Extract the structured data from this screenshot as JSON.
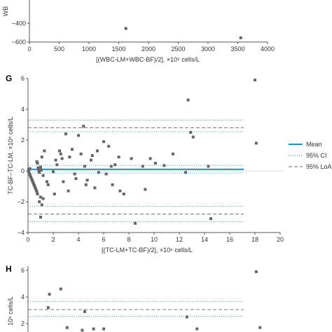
{
  "chart_data": [
    {
      "panel_label": "",
      "type": "scatter",
      "xlabel": "[(WBC-LM+WBC-BF)/2], ×10⁶ cells/L",
      "ylabel": "WB",
      "xlim": [
        0,
        4000
      ],
      "ylim": [
        -600,
        0
      ],
      "x_ticks": [
        "0",
        "500",
        "1000",
        "1500",
        "2000",
        "2500",
        "3000",
        "3500",
        "4000"
      ],
      "y_ticks": [
        "−400",
        "−600"
      ],
      "ci_line": -10,
      "points": [
        {
          "x": 1620,
          "y": -455
        },
        {
          "x": 3550,
          "y": -555
        }
      ]
    },
    {
      "panel_label": "G",
      "type": "scatter",
      "xlabel": "[(TC-LM+TC-BF)/2], ×10⁶ cells/L",
      "ylabel": "TC-BF–TC-LM, ×10⁶ cells/L",
      "xlim": [
        0,
        20
      ],
      "ylim": [
        -4,
        6
      ],
      "x_ticks": [
        "0",
        "2",
        "4",
        "6",
        "8",
        "10",
        "12",
        "14",
        "16",
        "18",
        "20"
      ],
      "y_ticks": [
        "6",
        "4",
        "2",
        "0",
        "−2",
        "−4"
      ],
      "lines": {
        "mean": 0.1,
        "mean_ci": [
          -0.15,
          0.35
        ],
        "upper_loa": 2.8,
        "upper_loa_ci": [
          2.55,
          3.3
        ],
        "lower_loa": -2.8,
        "lower_loa_ci": [
          -2.3,
          -3.3
        ]
      },
      "points": [
        {
          "x": 0.05,
          "y": -0.05
        },
        {
          "x": 0.1,
          "y": -0.15
        },
        {
          "x": 0.15,
          "y": -0.25
        },
        {
          "x": 0.2,
          "y": -0.35
        },
        {
          "x": 0.25,
          "y": -0.45
        },
        {
          "x": 0.3,
          "y": -0.55
        },
        {
          "x": 0.35,
          "y": -0.65
        },
        {
          "x": 0.4,
          "y": -0.75
        },
        {
          "x": 0.45,
          "y": -0.85
        },
        {
          "x": 0.5,
          "y": -0.95
        },
        {
          "x": 0.55,
          "y": -1.05
        },
        {
          "x": 0.6,
          "y": -1.15
        },
        {
          "x": 0.65,
          "y": -1.25
        },
        {
          "x": 0.7,
          "y": -1.35
        },
        {
          "x": 0.75,
          "y": -1.5
        },
        {
          "x": 0.05,
          "y": 0.1
        },
        {
          "x": 0.15,
          "y": 0.15
        },
        {
          "x": 0.7,
          "y": 0.6
        },
        {
          "x": 0.75,
          "y": 0.5
        },
        {
          "x": 0.8,
          "y": 0.2
        },
        {
          "x": 0.85,
          "y": 0.0
        },
        {
          "x": 0.9,
          "y": -0.1
        },
        {
          "x": 0.95,
          "y": 0.1
        },
        {
          "x": 1.0,
          "y": 0.25
        },
        {
          "x": 1.05,
          "y": 0.05
        },
        {
          "x": 1.0,
          "y": -1.7
        },
        {
          "x": 1.2,
          "y": -1.8
        },
        {
          "x": 0.9,
          "y": -2.0
        },
        {
          "x": 1.1,
          "y": -2.2
        },
        {
          "x": 1.0,
          "y": -3.0
        },
        {
          "x": 1.1,
          "y": 0.9
        },
        {
          "x": 1.3,
          "y": 1.3
        },
        {
          "x": 1.2,
          "y": -0.3
        },
        {
          "x": 1.5,
          "y": -0.7
        },
        {
          "x": 1.6,
          "y": -0.9
        },
        {
          "x": 2.0,
          "y": -0.05
        },
        {
          "x": 2.2,
          "y": 0.7
        },
        {
          "x": 2.3,
          "y": 0.4
        },
        {
          "x": 2.1,
          "y": -1.5
        },
        {
          "x": 2.5,
          "y": 1.3
        },
        {
          "x": 2.6,
          "y": 1.1
        },
        {
          "x": 2.7,
          "y": 0.8
        },
        {
          "x": 2.8,
          "y": -0.7
        },
        {
          "x": 3.0,
          "y": 2.4
        },
        {
          "x": 3.3,
          "y": 0.9
        },
        {
          "x": 3.2,
          "y": -1.3
        },
        {
          "x": 3.5,
          "y": 1.4
        },
        {
          "x": 3.7,
          "y": -0.2
        },
        {
          "x": 3.8,
          "y": -0.5
        },
        {
          "x": 4.0,
          "y": 2.3
        },
        {
          "x": 4.2,
          "y": 1.1
        },
        {
          "x": 4.4,
          "y": 2.9
        },
        {
          "x": 4.5,
          "y": 0.3
        },
        {
          "x": 4.6,
          "y": -0.9
        },
        {
          "x": 4.7,
          "y": -0.6
        },
        {
          "x": 5.0,
          "y": 0.7
        },
        {
          "x": 5.1,
          "y": 1.0
        },
        {
          "x": 5.3,
          "y": -1.1
        },
        {
          "x": 5.5,
          "y": 1.3
        },
        {
          "x": 5.6,
          "y": -0.1
        },
        {
          "x": 6.0,
          "y": 1.9
        },
        {
          "x": 6.2,
          "y": -0.2
        },
        {
          "x": 6.4,
          "y": 1.6
        },
        {
          "x": 6.6,
          "y": 0.3
        },
        {
          "x": 6.7,
          "y": -0.9
        },
        {
          "x": 6.9,
          "y": 0.4
        },
        {
          "x": 7.2,
          "y": 0.9
        },
        {
          "x": 7.3,
          "y": -1.3
        },
        {
          "x": 7.6,
          "y": -1.5
        },
        {
          "x": 8.2,
          "y": 0.8
        },
        {
          "x": 8.5,
          "y": -3.4
        },
        {
          "x": 9.1,
          "y": 0.3
        },
        {
          "x": 9.3,
          "y": -1.2
        },
        {
          "x": 9.7,
          "y": 0.8
        },
        {
          "x": 10.1,
          "y": 0.5
        },
        {
          "x": 10.8,
          "y": 0.35
        },
        {
          "x": 11.5,
          "y": 1.1
        },
        {
          "x": 12.5,
          "y": -0.1
        },
        {
          "x": 12.7,
          "y": 4.6
        },
        {
          "x": 12.9,
          "y": 2.5
        },
        {
          "x": 13.1,
          "y": 2.2
        },
        {
          "x": 14.3,
          "y": 0.3
        },
        {
          "x": 14.5,
          "y": -3.1
        },
        {
          "x": 18.0,
          "y": 5.9
        },
        {
          "x": 18.1,
          "y": 1.8
        }
      ],
      "legend": {
        "placement": "right",
        "entries": [
          {
            "label": "Mean",
            "style": "solid",
            "color": "#1a8fc6"
          },
          {
            "label": "95% CI",
            "style": "dotted",
            "color": "#3fae7a"
          },
          {
            "label": "95% LoA",
            "style": "dashed",
            "color": "#888888"
          }
        ]
      }
    },
    {
      "panel_label": "H",
      "type": "scatter",
      "ylabel": "10⁶ cells/L",
      "xlim": [
        0,
        20
      ],
      "ylim": [
        1.5,
        6
      ],
      "y_ticks": [
        "6",
        "4",
        "2"
      ],
      "lines": {
        "upper_loa": 3.05,
        "upper_loa_ci": [
          2.55,
          3.65
        ]
      },
      "points": [
        {
          "x": 1.7,
          "y": 4.2
        },
        {
          "x": 2.6,
          "y": 4.6
        },
        {
          "x": 1.6,
          "y": 3.2
        },
        {
          "x": 4.5,
          "y": 2.9
        },
        {
          "x": 3.1,
          "y": 1.7
        },
        {
          "x": 4.3,
          "y": 1.5
        },
        {
          "x": 5.2,
          "y": 1.6
        },
        {
          "x": 6.0,
          "y": 1.6
        },
        {
          "x": 12.6,
          "y": 2.5
        },
        {
          "x": 13.4,
          "y": 1.6
        },
        {
          "x": 18.1,
          "y": 5.9
        },
        {
          "x": 18.4,
          "y": 1.7
        }
      ]
    }
  ],
  "colors": {
    "mean": "#1a8fc6",
    "ci": "#3fae7a",
    "loa": "#888888",
    "point": "#666666",
    "axis": "#555555"
  }
}
